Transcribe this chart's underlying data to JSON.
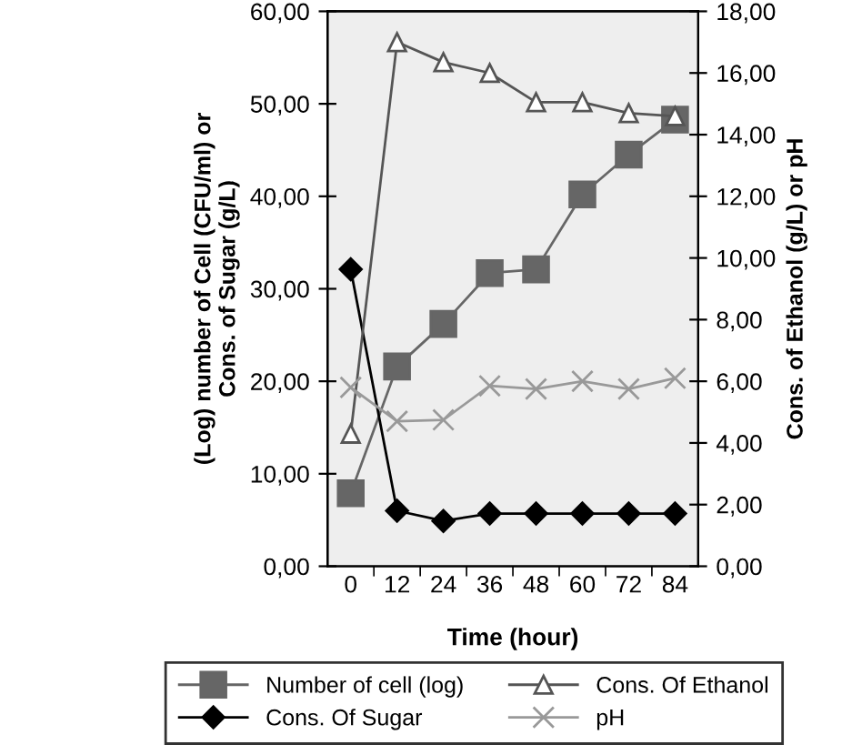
{
  "chart_data": {
    "type": "line",
    "xlabel": "Time (hour)",
    "ylabel": "(Log) number of Cell (CFU/ml) or\nCons. of Sugar (g/L)",
    "y2label": "Cons. of Ethanol (g/L) or pH",
    "categories": [
      "0",
      "12",
      "24",
      "36",
      "48",
      "60",
      "72",
      "84"
    ],
    "series": [
      {
        "name": "Number of cell (log)",
        "color": "#666666",
        "marker": "square",
        "values": [
          7.9,
          21.6,
          26.2,
          31.7,
          32.1,
          40.2,
          44.5,
          48.3
        ]
      },
      {
        "name": "Cons. Of Sugar",
        "color": "#000000",
        "marker": "diamond",
        "values": [
          32.1,
          6.0,
          4.9,
          5.7,
          5.7,
          5.7,
          5.7,
          5.7
        ]
      },
      {
        "name": "Cons. Of Ethanol",
        "color": "#555555",
        "marker": "triangle",
        "axis": "y2",
        "values": [
          4.3,
          17.0,
          16.35,
          16.0,
          15.05,
          15.05,
          14.7,
          14.6
        ]
      },
      {
        "name": "pH",
        "color": "#999999",
        "marker": "cross",
        "axis": "y2",
        "values": [
          5.8,
          4.7,
          4.75,
          5.85,
          5.75,
          6.0,
          5.75,
          6.1
        ]
      }
    ],
    "ylim": [
      0,
      60
    ],
    "yticks": [
      {
        "value": 0,
        "label": "0,00"
      },
      {
        "value": 10,
        "label": "10,00"
      },
      {
        "value": 20,
        "label": "20,00"
      },
      {
        "value": 30,
        "label": "30,00"
      },
      {
        "value": 40,
        "label": "40,00"
      },
      {
        "value": 50,
        "label": "50,00"
      },
      {
        "value": 60,
        "label": "60,00"
      }
    ],
    "y2lim": [
      0,
      18
    ],
    "y2ticks": [
      {
        "value": 0,
        "label": "0,00"
      },
      {
        "value": 2,
        "label": "2,00"
      },
      {
        "value": 4,
        "label": "4,00"
      },
      {
        "value": 6,
        "label": "6,00"
      },
      {
        "value": 8,
        "label": "8,00"
      },
      {
        "value": 10,
        "label": "10,00"
      },
      {
        "value": 12,
        "label": "12,00"
      },
      {
        "value": 14,
        "label": "14,00"
      },
      {
        "value": 16,
        "label": "16,00"
      },
      {
        "value": 18,
        "label": "18,00"
      }
    ],
    "grid": false,
    "legend": "bottom"
  }
}
